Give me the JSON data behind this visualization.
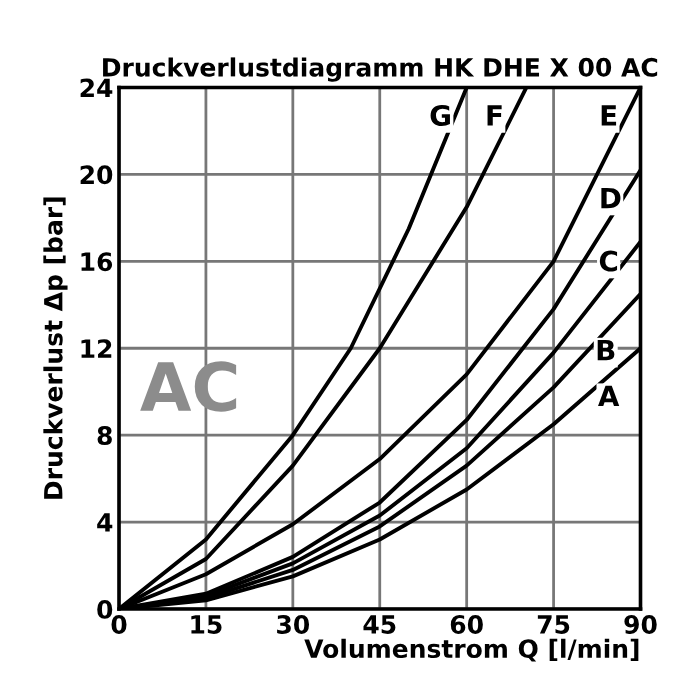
{
  "chart_data": {
    "type": "line",
    "title": "Druckverlustdiagramm HK DHE X 00 AC",
    "xlabel": "Volumenstrom Q [l/min]",
    "ylabel": "Druckverlust Δp [bar]",
    "series": [
      {
        "color": "#000000",
        "x": [
          0,
          15,
          30,
          45,
          60,
          75,
          90
        ],
        "values": [
          0,
          0.4,
          1.5,
          3.2,
          5.5,
          8.5,
          12
        ]
      },
      {
        "color": "#000000",
        "x": [
          0,
          15,
          30,
          45,
          60,
          75,
          90
        ],
        "values": [
          0,
          0.5,
          1.8,
          3.8,
          6.6,
          10.2,
          14.5
        ]
      },
      {
        "color": "#000000",
        "x": [
          0,
          15,
          30,
          45,
          60,
          75,
          90
        ],
        "values": [
          0,
          0.6,
          2.1,
          4.3,
          7.4,
          11.8,
          16.9
        ]
      },
      {
        "color": "#000000",
        "x": [
          0,
          15,
          30,
          45,
          60,
          75,
          90
        ],
        "values": [
          0,
          0.7,
          2.4,
          4.9,
          8.7,
          13.8,
          20.2
        ]
      },
      {
        "color": "#000000",
        "x": [
          0,
          15,
          30,
          45,
          60,
          75,
          90
        ],
        "values": [
          0,
          1.6,
          3.9,
          6.9,
          10.8,
          16,
          24
        ]
      },
      {
        "color": "#000000",
        "x": [
          0,
          15,
          30,
          45,
          60,
          70.3
        ],
        "values": [
          0,
          2.3,
          6.6,
          12,
          18.5,
          24
        ]
      },
      {
        "color": "#000000",
        "x": [
          0,
          15,
          30,
          40,
          50,
          60
        ],
        "values": [
          0,
          3.2,
          8,
          12,
          17.5,
          24
        ]
      }
    ],
    "annotations": [
      {
        "text": "A",
        "x": 84.5,
        "y": 9.7
      },
      {
        "text": "B",
        "x": 84,
        "y": 11.8
      },
      {
        "text": "C",
        "x": 84.5,
        "y": 15.9
      },
      {
        "text": "D",
        "x": 84.8,
        "y": 18.8
      },
      {
        "text": "E",
        "x": 84.5,
        "y": 22.6
      },
      {
        "text": "F",
        "x": 64.8,
        "y": 22.6
      },
      {
        "text": "G",
        "x": 55.5,
        "y": 22.6
      },
      "AC"
    ],
    "xlim": [
      0,
      90
    ],
    "ylim": [
      0,
      24
    ],
    "xticks": [
      0,
      15,
      30,
      45,
      60,
      75,
      90
    ],
    "yticks": [
      0,
      4,
      8,
      12,
      16,
      20,
      24
    ],
    "grid": true,
    "marker": "none",
    "line_style": "solid",
    "legend": false
  }
}
